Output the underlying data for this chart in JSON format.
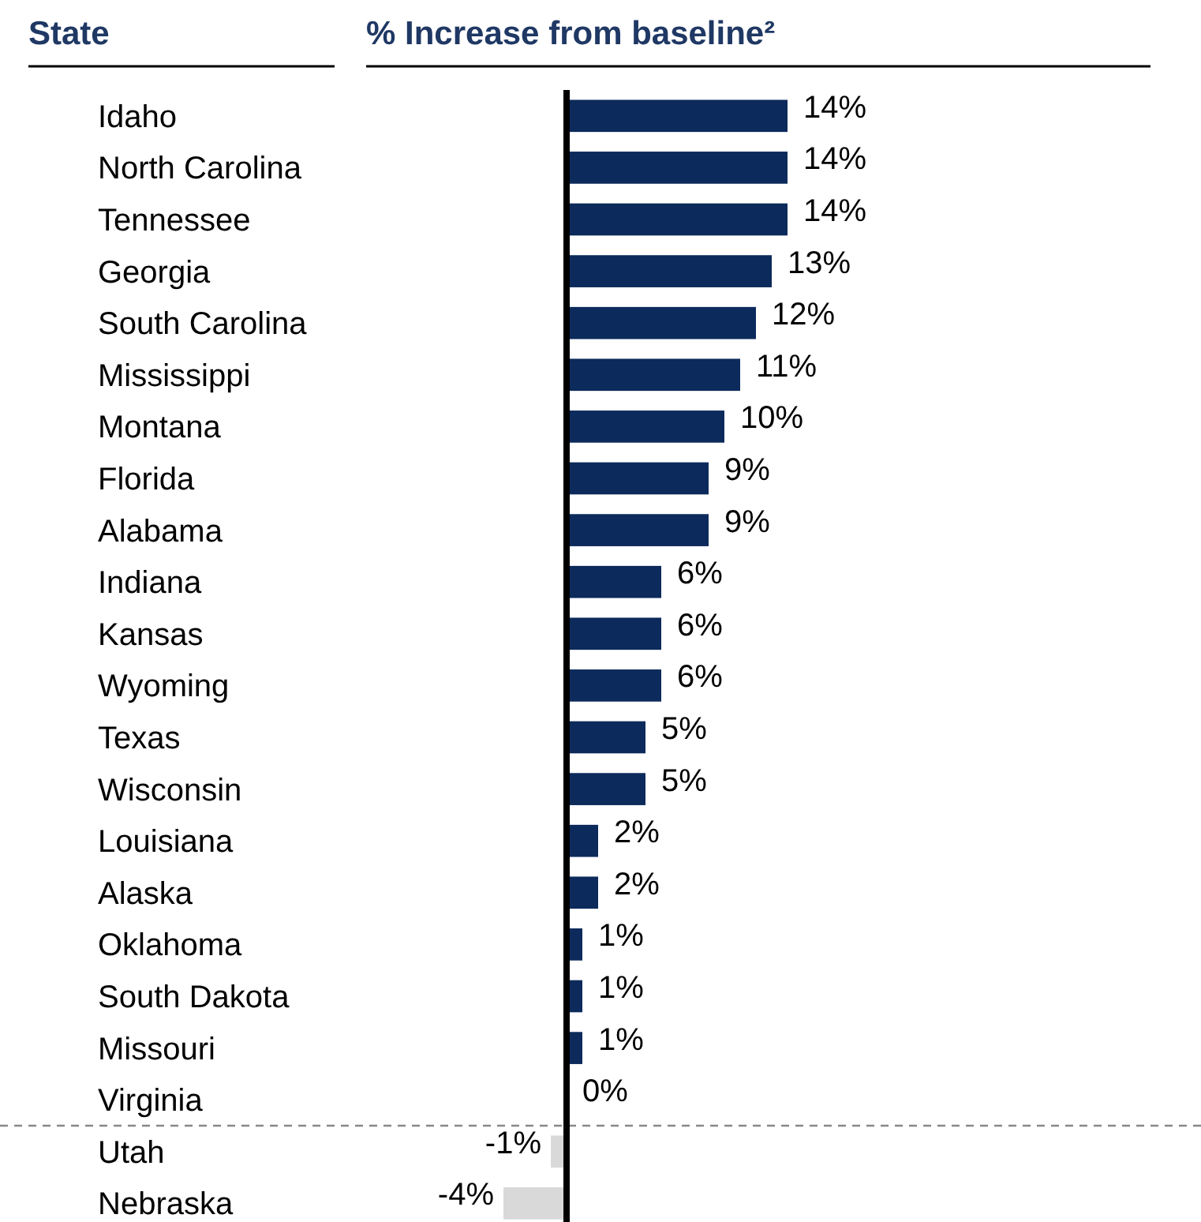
{
  "chart_data": {
    "type": "bar",
    "orientation": "horizontal",
    "ylabel": "State",
    "xlabel": "% Increase from baseline²",
    "categories": [
      "Idaho",
      "North Carolina",
      "Tennessee",
      "Georgia",
      "South Carolina",
      "Mississippi",
      "Montana",
      "Florida",
      "Alabama",
      "Indiana",
      "Kansas",
      "Wyoming",
      "Texas",
      "Wisconsin",
      "Louisiana",
      "Alaska",
      "Oklahoma",
      "South Dakota",
      "Missouri",
      "Virginia",
      "Utah",
      "Nebraska"
    ],
    "values": [
      14,
      14,
      14,
      13,
      12,
      11,
      10,
      9,
      9,
      6,
      6,
      6,
      5,
      5,
      2,
      2,
      1,
      1,
      1,
      0,
      -1,
      -4
    ],
    "colors": [
      "#0c2a5b",
      "#0c2a5b",
      "#0c2a5b",
      "#0c2a5b",
      "#0c2a5b",
      "#0c2a5b",
      "#0c2a5b",
      "#0c2a5b",
      "#0c2a5b",
      "#0c2a5b",
      "#0c2a5b",
      "#0c2a5b",
      "#0c2a5b",
      "#0c2a5b",
      "#0c2a5b",
      "#0c2a5b",
      "#0c2a5b",
      "#0c2a5b",
      "#0c2a5b",
      "#0c2a5b",
      "#d9d9d9",
      "#d9d9d9"
    ],
    "value_labels": [
      "14%",
      "14%",
      "14%",
      "13%",
      "12%",
      "11%",
      "10%",
      "9%",
      "9%",
      "6%",
      "6%",
      "6%",
      "5%",
      "5%",
      "2%",
      "2%",
      "1%",
      "1%",
      "1%",
      "0%",
      "-1%",
      "-4%"
    ],
    "tick_labels": "y"
  }
}
